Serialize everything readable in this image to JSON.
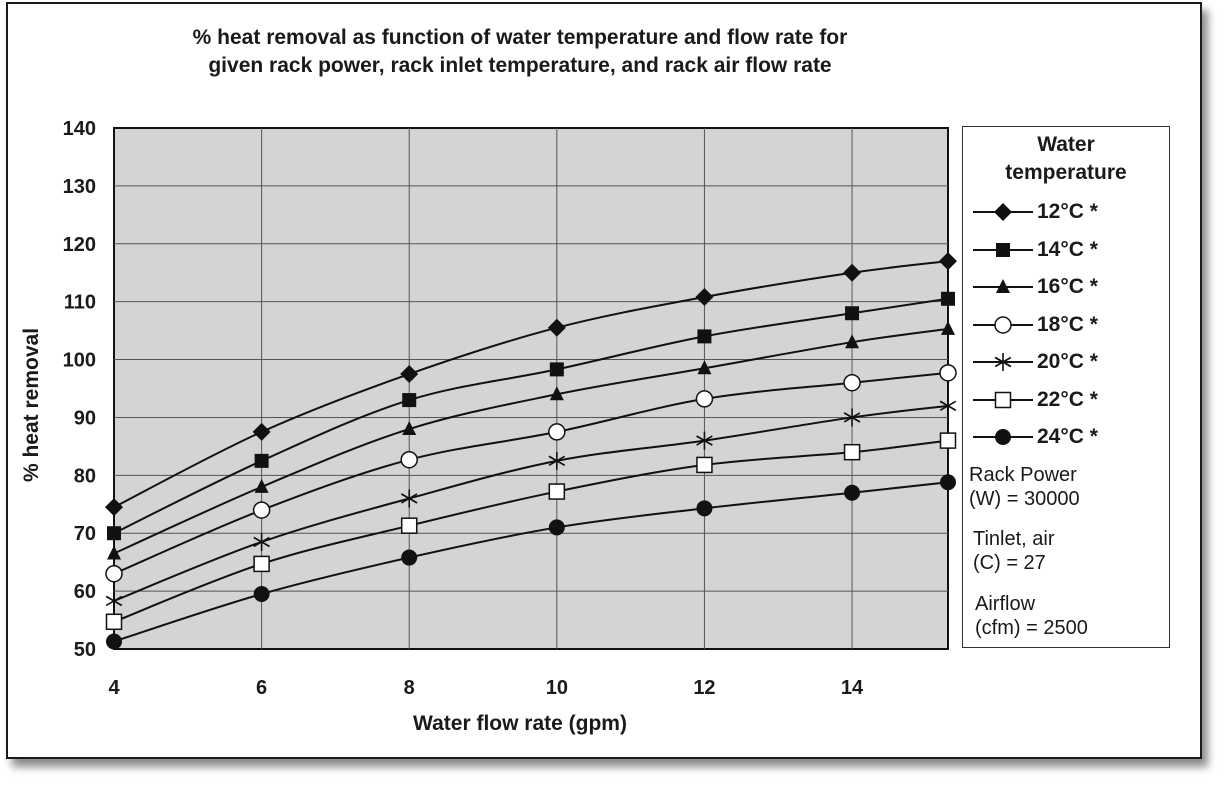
{
  "chart_data": {
    "type": "line",
    "title": "% heat removal as function of water temperature and flow rate for given rack power, rack inlet temperature, and rack air flow rate",
    "title_lines": [
      "% heat removal as function of water temperature and flow rate for",
      "given rack power, rack inlet temperature, and rack air flow rate"
    ],
    "xlabel": "Water flow rate (gpm)",
    "ylabel": "% heat removal",
    "xlim": [
      4,
      15.3
    ],
    "ylim": [
      50,
      140
    ],
    "xticks": [
      4,
      6,
      8,
      10,
      12,
      14
    ],
    "yticks": [
      50,
      60,
      70,
      80,
      90,
      100,
      110,
      120,
      130,
      140
    ],
    "grid": true,
    "legend_position": "right",
    "legend_title": [
      "Water",
      "temperature"
    ],
    "x": [
      4,
      6,
      8,
      10,
      12,
      14,
      15.3
    ],
    "series": [
      {
        "name": "12°C *",
        "marker": "diamond",
        "values": [
          74.5,
          87.5,
          97.5,
          105.5,
          110.8,
          115,
          117
        ]
      },
      {
        "name": "14°C *",
        "marker": "square-filled",
        "values": [
          70,
          82.5,
          93,
          98.3,
          104,
          108,
          110.5
        ]
      },
      {
        "name": "16°C *",
        "marker": "triangle",
        "values": [
          66.5,
          78,
          88,
          94,
          98.5,
          103,
          105.3
        ]
      },
      {
        "name": "18°C *",
        "marker": "circle-open",
        "values": [
          63,
          74,
          82.7,
          87.5,
          93.2,
          96,
          97.7
        ]
      },
      {
        "name": "20°C *",
        "marker": "asterisk",
        "values": [
          58.3,
          68.5,
          76,
          82.5,
          86,
          90,
          92
        ]
      },
      {
        "name": "22°C *",
        "marker": "square-open",
        "values": [
          54.7,
          64.7,
          71.3,
          77.2,
          81.8,
          84,
          86
        ]
      },
      {
        "name": "24°C *",
        "marker": "circle-filled",
        "values": [
          51.3,
          59.5,
          65.8,
          71,
          74.3,
          77,
          78.8
        ]
      }
    ],
    "notes": [
      [
        "Rack Power",
        "(W) = 30000"
      ],
      [
        "Tinlet, air",
        "(C) = 27"
      ],
      [
        "Airflow",
        "(cfm) = 2500"
      ]
    ]
  },
  "colors": {
    "plot_background": "#d4d4d4",
    "line": "#111111",
    "grid": "#555555"
  }
}
